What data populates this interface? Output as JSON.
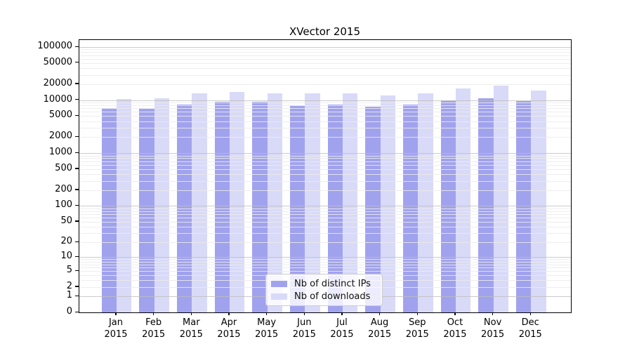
{
  "title": "XVector 2015",
  "chart_data": {
    "type": "bar",
    "title": "XVector 2015",
    "categories": [
      "Jan 2015",
      "Feb 2015",
      "Mar 2015",
      "Apr 2015",
      "May 2015",
      "Jun 2015",
      "Jul 2015",
      "Aug 2015",
      "Sep 2015",
      "Oct 2015",
      "Nov 2015",
      "Dec 2015"
    ],
    "series": [
      {
        "name": "Nb of distinct IPs",
        "color": "#a1a2ee",
        "values": [
          7100,
          6900,
          8200,
          9200,
          9200,
          8100,
          8300,
          7600,
          8300,
          9800,
          10700,
          9700
        ]
      },
      {
        "name": "Nb of downloads",
        "color": "#d9daf8",
        "values": [
          10600,
          10800,
          13200,
          14300,
          13600,
          13200,
          13500,
          12300,
          13300,
          16600,
          19000,
          15200
        ]
      }
    ],
    "ylabel": "",
    "xlabel": "",
    "yscale": "symlog",
    "yticks": [
      0,
      1,
      2,
      5,
      10,
      20,
      50,
      100,
      200,
      500,
      1000,
      2000,
      5000,
      10000,
      20000,
      50000,
      100000
    ],
    "ylim": [
      0,
      135000
    ],
    "grid": "both",
    "legend_position": "lower center"
  },
  "colors": {
    "major_grid": "#c8c8c8",
    "minor_grid": "#ededed",
    "axis": "#000000",
    "background": "#ffffff"
  }
}
